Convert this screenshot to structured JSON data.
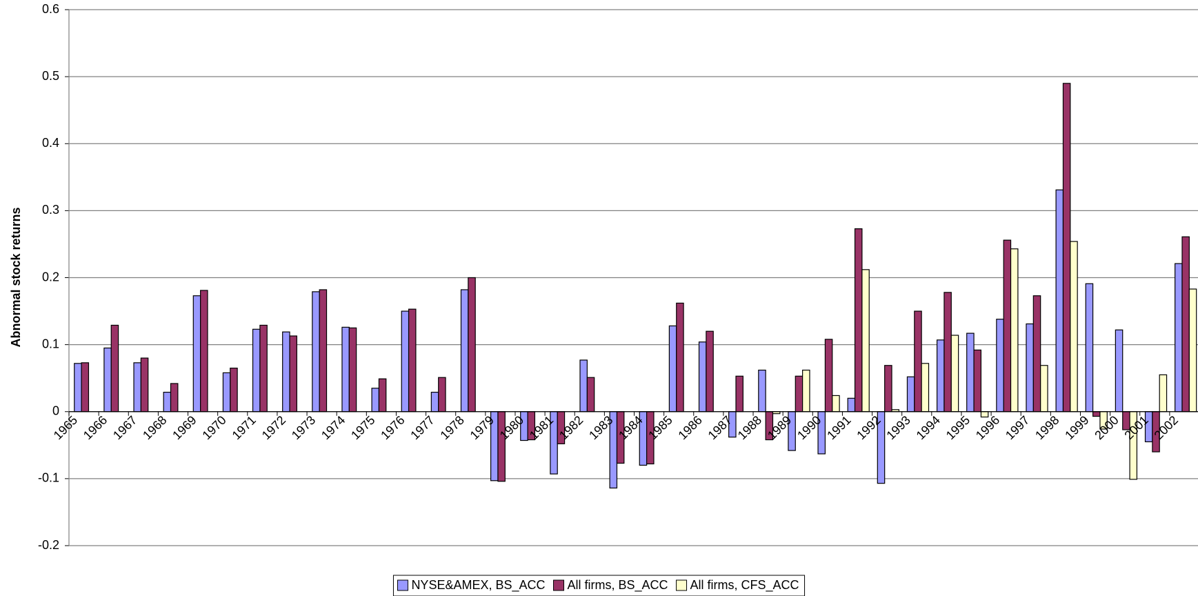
{
  "chart_data": {
    "type": "bar",
    "y_label": "Abnormal stock returns",
    "categories": [
      "1965",
      "1966",
      "1967",
      "1968",
      "1969",
      "1970",
      "1971",
      "1972",
      "1973",
      "1974",
      "1975",
      "1976",
      "1977",
      "1978",
      "1979",
      "1980",
      "1981",
      "1982",
      "1983",
      "1984",
      "1985",
      "1986",
      "1987",
      "1988",
      "1989",
      "1990",
      "1991",
      "1992",
      "1993",
      "1994",
      "1995",
      "1996",
      "1997",
      "1998",
      "1999",
      "2000",
      "2001",
      "2002"
    ],
    "series": [
      {
        "name": "NYSE&AMEX, BS_ACC",
        "color": "#9999ff",
        "values": [
          0.072,
          0.095,
          0.073,
          0.029,
          0.173,
          0.058,
          0.123,
          0.119,
          0.179,
          0.126,
          0.035,
          0.15,
          0.029,
          0.182,
          -0.103,
          -0.043,
          -0.093,
          0.077,
          -0.114,
          -0.08,
          0.128,
          0.104,
          -0.038,
          0.062,
          -0.058,
          -0.063,
          0.02,
          -0.107,
          0.052,
          0.107,
          0.117,
          0.138,
          0.131,
          0.331,
          0.191,
          0.122,
          -0.045,
          0.221
        ]
      },
      {
        "name": "All firms, BS_ACC",
        "color": "#993366",
        "values": [
          0.073,
          0.129,
          0.08,
          0.042,
          0.181,
          0.065,
          0.129,
          0.113,
          0.182,
          0.125,
          0.049,
          0.153,
          0.051,
          0.2,
          -0.104,
          -0.042,
          -0.048,
          0.051,
          -0.077,
          -0.078,
          0.162,
          0.12,
          0.053,
          -0.042,
          0.053,
          0.108,
          0.273,
          0.069,
          0.15,
          0.178,
          0.092,
          0.256,
          0.173,
          0.49,
          -0.007,
          -0.027,
          -0.06,
          0.261
        ]
      },
      {
        "name": "All firms, CFS_ACC",
        "color": "#ffffcc",
        "values": [
          null,
          null,
          null,
          null,
          null,
          null,
          null,
          null,
          null,
          null,
          null,
          null,
          null,
          null,
          null,
          null,
          null,
          null,
          null,
          null,
          null,
          null,
          null,
          -0.003,
          0.062,
          0.024,
          0.212,
          0.003,
          0.072,
          0.114,
          -0.008,
          0.243,
          0.069,
          0.254,
          -0.026,
          -0.101,
          0.055,
          0.183
        ]
      }
    ],
    "ylim": [
      -0.2,
      0.6
    ],
    "yticks": [
      -0.2,
      -0.1,
      0,
      0.1,
      0.2,
      0.3,
      0.4,
      0.5,
      0.6
    ],
    "grid": true,
    "legend": "bottom"
  }
}
